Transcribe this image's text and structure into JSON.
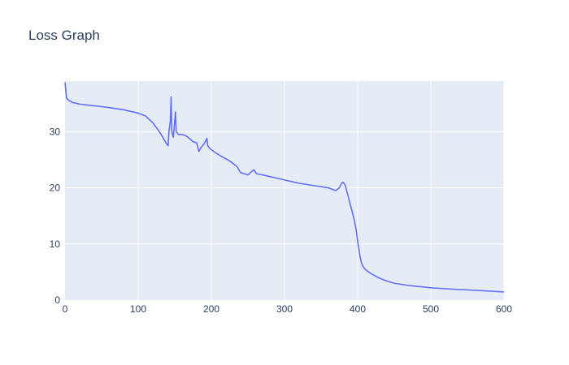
{
  "chart_data": {
    "type": "line",
    "title": "Loss Graph",
    "xlabel": "",
    "ylabel": "",
    "xlim": [
      0,
      600
    ],
    "ylim": [
      0,
      39
    ],
    "x_ticks": [
      0,
      100,
      200,
      300,
      400,
      500,
      600
    ],
    "y_ticks": [
      0,
      10,
      20,
      30
    ],
    "grid": true,
    "colors": {
      "line": "#636efa",
      "plot_bg": "#e5ecf6",
      "grid": "#ffffff",
      "text": "#2a3f5f"
    },
    "series": [
      {
        "x": [
          0,
          2,
          5,
          10,
          20,
          40,
          60,
          80,
          100,
          110,
          120,
          130,
          138,
          141,
          142,
          144,
          145,
          146,
          148,
          150,
          151,
          152,
          155,
          160,
          165,
          170,
          175,
          180,
          183,
          186,
          190,
          194,
          195,
          198,
          205,
          215,
          225,
          235,
          240,
          250,
          258,
          262,
          270,
          280,
          290,
          300,
          310,
          320,
          330,
          340,
          350,
          360,
          370,
          375,
          378,
          380,
          383,
          386,
          390,
          395,
          398,
          400,
          403,
          405,
          407,
          410,
          415,
          420,
          430,
          440,
          450,
          470,
          500,
          530,
          560,
          600
        ],
        "y": [
          38.8,
          36.0,
          35.6,
          35.2,
          34.9,
          34.6,
          34.3,
          33.9,
          33.3,
          32.8,
          31.6,
          29.8,
          28.0,
          27.5,
          30.0,
          32.0,
          36.2,
          30.0,
          29.0,
          32.0,
          33.5,
          30.0,
          29.5,
          29.5,
          29.3,
          28.8,
          28.2,
          28.0,
          26.5,
          27.2,
          27.8,
          28.8,
          27.5,
          27.0,
          26.3,
          25.5,
          24.8,
          23.8,
          22.7,
          22.3,
          23.2,
          22.5,
          22.3,
          22.0,
          21.7,
          21.4,
          21.1,
          20.8,
          20.6,
          20.4,
          20.2,
          20.0,
          19.5,
          20.0,
          20.8,
          21.0,
          20.5,
          19.0,
          17.0,
          14.5,
          12.5,
          10.5,
          8.0,
          6.7,
          6.1,
          5.5,
          5.0,
          4.6,
          3.9,
          3.4,
          3.0,
          2.6,
          2.2,
          1.95,
          1.75,
          1.45
        ]
      }
    ]
  }
}
